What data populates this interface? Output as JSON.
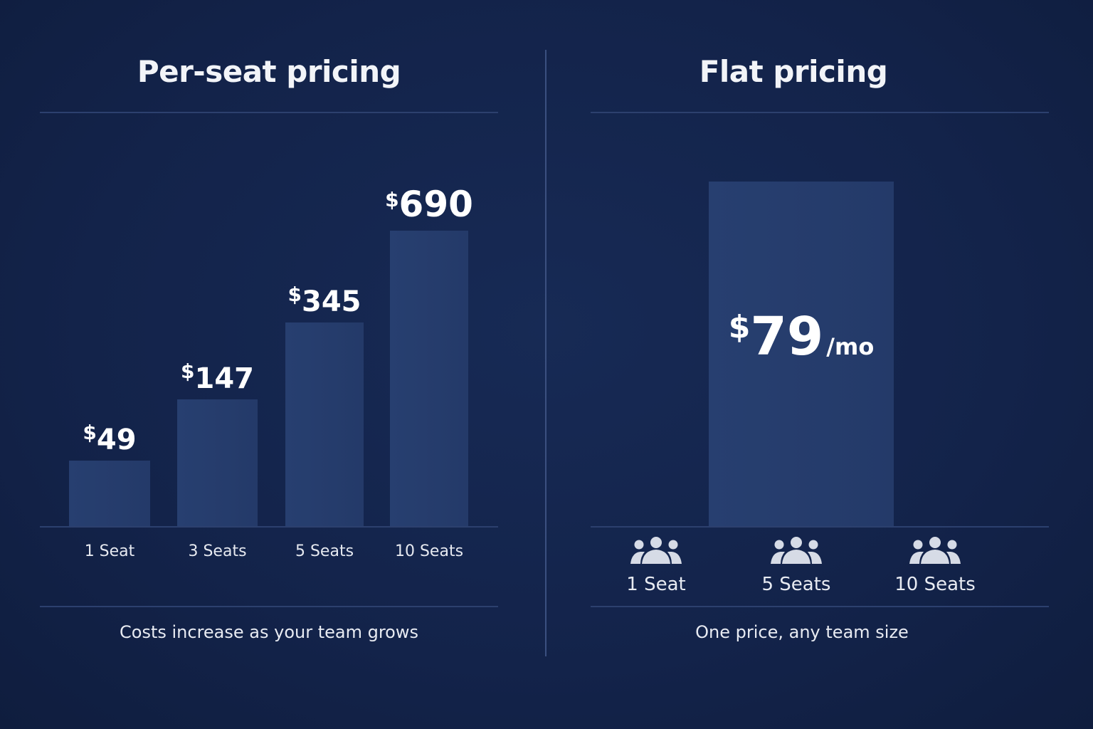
{
  "chart_data": [
    {
      "type": "bar",
      "title": "Per-seat pricing",
      "categories": [
        "1 Seat",
        "3 Seats",
        "5 Seats",
        "10 Seats"
      ],
      "values": [
        49,
        147,
        345,
        690
      ],
      "value_labels": [
        "$49",
        "$147",
        "$345",
        "$690"
      ],
      "currency": "$",
      "caption": "Costs increase as your team grows",
      "bar_color": "#263f70",
      "grid": false
    },
    {
      "type": "bar",
      "title": "Flat pricing",
      "categories": [
        "1 Seat",
        "5 Seats",
        "10 Seats"
      ],
      "value": 79,
      "value_label": {
        "currency": "$",
        "amount": "79",
        "unit": "/mo"
      },
      "caption": "One price, any team size",
      "icon": "people-group-icon",
      "bar_color": "#263f70",
      "grid": false
    }
  ],
  "colors": {
    "background": "#13234a",
    "bar": "#263f70",
    "divider": "#2c406e",
    "text": "#ffffff"
  }
}
